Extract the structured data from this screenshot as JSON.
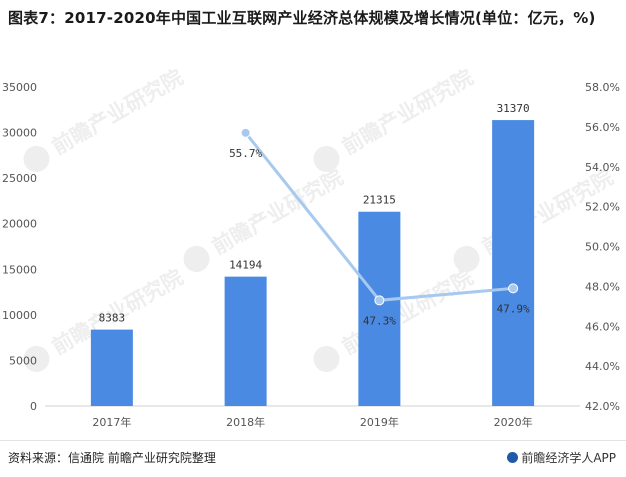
{
  "title": "图表7：2017-2020年中国工业互联网产业经济总体规模及增长情况(单位：亿元，%)",
  "footer": {
    "source": "资料来源：信通院 前瞻产业研究院整理",
    "logo_text": "前瞻经济学人APP"
  },
  "watermark": {
    "text": "前瞻产业研究院"
  },
  "colors": {
    "bar": "#4a8ae3",
    "line": "#a7c9f0",
    "axis": "#d0d0d0"
  },
  "chart_data": {
    "type": "bar",
    "categories": [
      "2017年",
      "2018年",
      "2019年",
      "2020年"
    ],
    "series": [
      {
        "type": "bar",
        "axis": "left",
        "values": [
          8383,
          14194,
          21315,
          31370
        ],
        "labels": [
          "8383",
          "14194",
          "21315",
          "31370"
        ]
      },
      {
        "type": "line",
        "axis": "right",
        "values": [
          null,
          55.7,
          47.3,
          47.9
        ],
        "labels": [
          "",
          "55.7%",
          "47.3%",
          "47.9%"
        ]
      }
    ],
    "y_left": {
      "min": 0,
      "max": 35000,
      "ticks": [
        "0",
        "5000",
        "10000",
        "15000",
        "20000",
        "25000",
        "30000",
        "35000"
      ]
    },
    "y_right": {
      "min": 42,
      "max": 58,
      "ticks": [
        "42.0%",
        "44.0%",
        "46.0%",
        "48.0%",
        "50.0%",
        "52.0%",
        "54.0%",
        "56.0%",
        "58.0%"
      ]
    },
    "grid": false,
    "legend": "none"
  }
}
